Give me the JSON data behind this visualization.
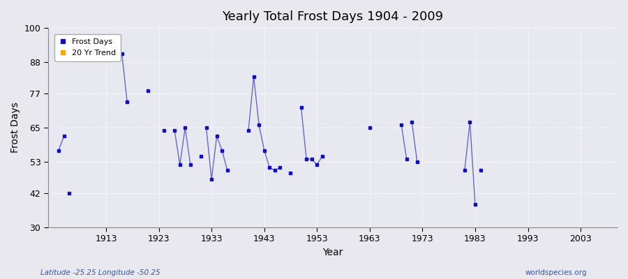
{
  "title": "Yearly Total Frost Days 1904 - 2009",
  "xlabel": "Year",
  "ylabel": "Frost Days",
  "ylim": [
    30,
    100
  ],
  "xlim": [
    1902,
    2010
  ],
  "yticks": [
    30,
    42,
    53,
    65,
    77,
    88,
    100
  ],
  "xticks": [
    1913,
    1923,
    1933,
    1943,
    1953,
    1963,
    1973,
    1983,
    1993,
    2003
  ],
  "bg_color": "#e8e8ee",
  "plot_bg_color": "#e8e8f0",
  "line_color": "#6666cc",
  "marker_color": "#1111bb",
  "legend_items": [
    "Frost Days",
    "20 Yr Trend"
  ],
  "legend_colors": [
    "#1111bb",
    "#ffa500"
  ],
  "subtitle_left": "Latitude -25.25 Longitude -50.25",
  "subtitle_right": "worldspecies.org",
  "groups": [
    [
      [
        1904,
        57
      ],
      [
        1905,
        62
      ]
    ],
    [
      [
        1906,
        42
      ]
    ],
    [
      [
        1916,
        91
      ],
      [
        1917,
        74
      ]
    ],
    [
      [
        1921,
        78
      ]
    ],
    [
      [
        1924,
        64
      ]
    ],
    [
      [
        1926,
        64
      ],
      [
        1927,
        52
      ],
      [
        1928,
        65
      ],
      [
        1929,
        52
      ]
    ],
    [
      [
        1931,
        55
      ]
    ],
    [
      [
        1932,
        65
      ],
      [
        1933,
        47
      ],
      [
        1934,
        62
      ],
      [
        1935,
        57
      ],
      [
        1936,
        50
      ]
    ],
    [
      [
        1940,
        64
      ],
      [
        1941,
        83
      ],
      [
        1942,
        66
      ],
      [
        1943,
        57
      ],
      [
        1944,
        51
      ],
      [
        1945,
        50
      ],
      [
        1946,
        51
      ]
    ],
    [
      [
        1948,
        49
      ]
    ],
    [
      [
        1950,
        72
      ],
      [
        1951,
        54
      ],
      [
        1952,
        54
      ],
      [
        1953,
        52
      ],
      [
        1954,
        55
      ]
    ],
    [
      [
        1963,
        65
      ]
    ],
    [
      [
        1969,
        66
      ],
      [
        1970,
        54
      ]
    ],
    [
      [
        1971,
        67
      ],
      [
        1972,
        53
      ]
    ],
    [
      [
        1981,
        50
      ],
      [
        1982,
        67
      ],
      [
        1983,
        38
      ]
    ],
    [
      [
        1984,
        50
      ]
    ]
  ]
}
